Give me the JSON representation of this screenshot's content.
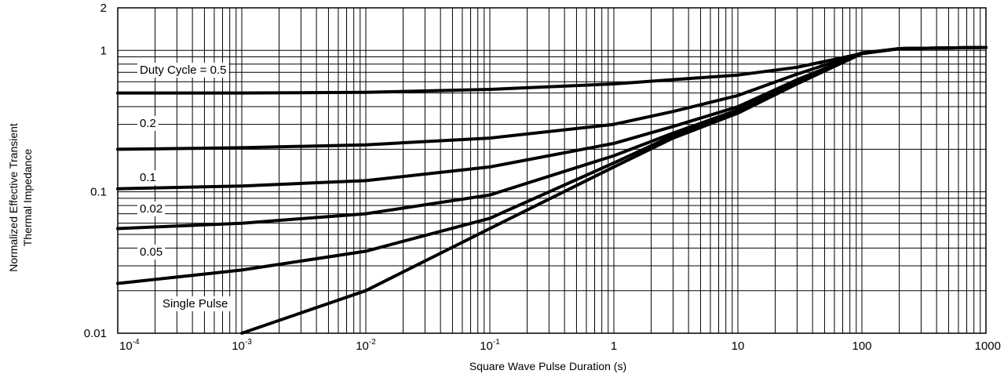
{
  "chart_data": {
    "type": "line",
    "title": "",
    "xlabel": "Square Wave Pulse Duration (s)",
    "ylabel_lines": [
      "Normalized Effective Transient",
      "Thermal Impedance"
    ],
    "xscale": "log",
    "yscale": "log",
    "xlim": [
      0.0001,
      1000
    ],
    "ylim": [
      0.01,
      2
    ],
    "grid": true,
    "x_tick_labels": [
      {
        "base": "10",
        "exp": "-4"
      },
      {
        "base": "10",
        "exp": "-3"
      },
      {
        "base": "10",
        "exp": "-2"
      },
      {
        "base": "10",
        "exp": "-1"
      },
      {
        "base": "1",
        "exp": ""
      },
      {
        "base": "10",
        "exp": ""
      },
      {
        "base": "100",
        "exp": ""
      },
      {
        "base": "1000",
        "exp": ""
      }
    ],
    "y_tick_labels": [
      "2",
      "1",
      "0.1",
      "0.01"
    ],
    "series": [
      {
        "name": "Duty Cycle = 0.5",
        "x": [
          0.0001,
          0.001,
          0.01,
          0.1,
          1,
          10,
          30,
          100,
          200,
          1000
        ],
        "y": [
          0.5,
          0.5,
          0.505,
          0.53,
          0.58,
          0.67,
          0.76,
          0.95,
          1.03,
          1.05
        ]
      },
      {
        "name": "0.2",
        "x": [
          0.0001,
          0.001,
          0.01,
          0.1,
          1,
          3,
          10,
          30,
          100,
          200,
          1000
        ],
        "y": [
          0.2,
          0.205,
          0.215,
          0.24,
          0.3,
          0.37,
          0.48,
          0.68,
          0.96,
          1.03,
          1.05
        ]
      },
      {
        "name": "0.1",
        "x": [
          0.0001,
          0.001,
          0.01,
          0.1,
          1,
          3,
          10,
          30,
          100,
          200,
          1000
        ],
        "y": [
          0.105,
          0.11,
          0.12,
          0.15,
          0.22,
          0.29,
          0.4,
          0.62,
          0.95,
          1.03,
          1.05
        ]
      },
      {
        "name": "0.05",
        "x": [
          0.0001,
          0.001,
          0.01,
          0.1,
          1,
          3,
          10,
          30,
          100,
          200,
          1000
        ],
        "y": [
          0.055,
          0.06,
          0.07,
          0.095,
          0.18,
          0.26,
          0.38,
          0.6,
          0.95,
          1.03,
          1.05
        ]
      },
      {
        "name": "0.02",
        "x": [
          0.0001,
          0.001,
          0.01,
          0.1,
          1,
          3,
          10,
          30,
          100,
          200,
          1000
        ],
        "y": [
          0.0225,
          0.028,
          0.038,
          0.065,
          0.16,
          0.25,
          0.37,
          0.59,
          0.95,
          1.03,
          1.05
        ]
      },
      {
        "name": "Single Pulse",
        "x": [
          0.001,
          0.01,
          0.1,
          1,
          3,
          10,
          30,
          100,
          200,
          1000
        ],
        "y": [
          0.01,
          0.02,
          0.055,
          0.15,
          0.24,
          0.36,
          0.58,
          0.95,
          1.03,
          1.05
        ]
      }
    ],
    "series_labels": [
      {
        "text": "Duty Cycle = 0.5"
      },
      {
        "text": "0.2"
      },
      {
        "text": "0.1"
      },
      {
        "text": "0.02"
      },
      {
        "text": "0.05"
      },
      {
        "text": "Single Pulse"
      }
    ]
  }
}
